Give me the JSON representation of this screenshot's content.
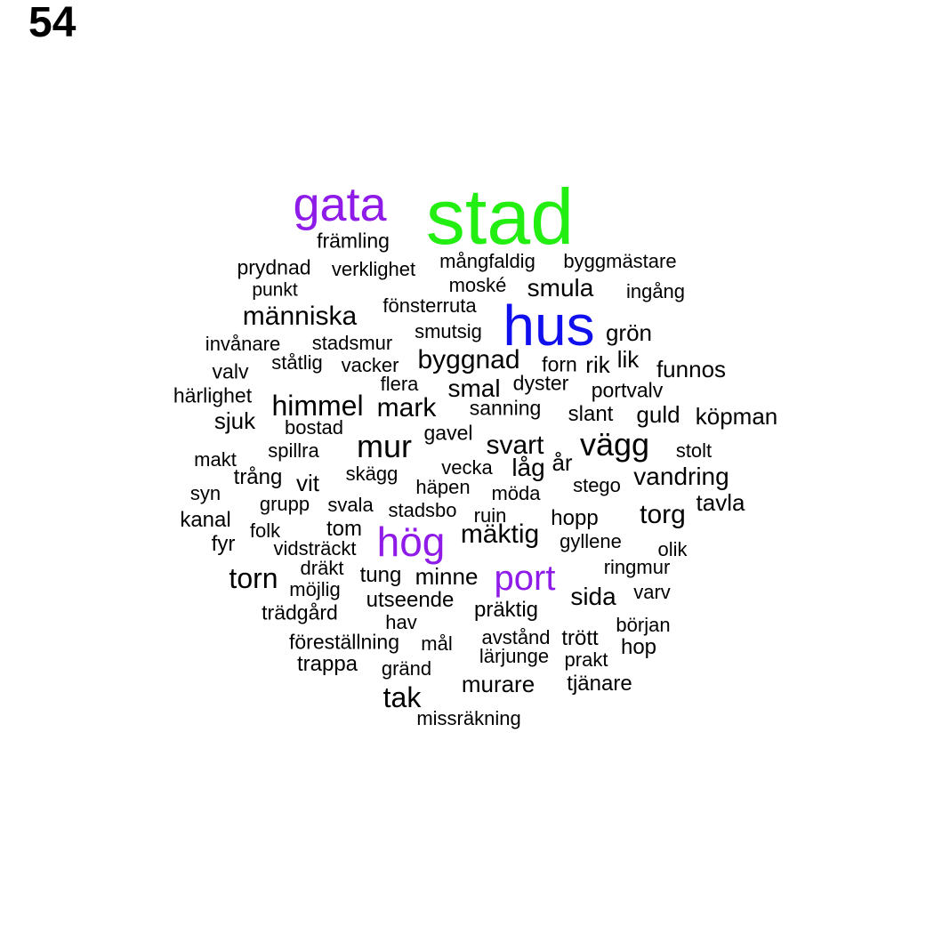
{
  "label": "54",
  "colors": {
    "default": "#000000",
    "green": "#22ee11",
    "purple": "#8e1be8",
    "blue": "#1010ee"
  },
  "words": [
    {
      "text": "stad",
      "color": "green"
    },
    {
      "text": "gata",
      "color": "purple"
    },
    {
      "text": "hus",
      "color": "blue"
    },
    {
      "text": "hög",
      "color": "purple"
    },
    {
      "text": "port",
      "color": "purple"
    },
    {
      "text": "främling"
    },
    {
      "text": "prydnad"
    },
    {
      "text": "verklighet"
    },
    {
      "text": "mångfaldig"
    },
    {
      "text": "byggmästare"
    },
    {
      "text": "punkt"
    },
    {
      "text": "moské"
    },
    {
      "text": "smula"
    },
    {
      "text": "ingång"
    },
    {
      "text": "människa"
    },
    {
      "text": "fönsterruta"
    },
    {
      "text": "invånare"
    },
    {
      "text": "stadsmur"
    },
    {
      "text": "smutsig"
    },
    {
      "text": "grön"
    },
    {
      "text": "valv"
    },
    {
      "text": "ståtlig"
    },
    {
      "text": "vacker"
    },
    {
      "text": "byggnad"
    },
    {
      "text": "forn"
    },
    {
      "text": "rik"
    },
    {
      "text": "lik"
    },
    {
      "text": "funnos"
    },
    {
      "text": "härlighet"
    },
    {
      "text": "flera"
    },
    {
      "text": "smal"
    },
    {
      "text": "dyster"
    },
    {
      "text": "portvalv"
    },
    {
      "text": "himmel"
    },
    {
      "text": "mark"
    },
    {
      "text": "sanning"
    },
    {
      "text": "slant"
    },
    {
      "text": "guld"
    },
    {
      "text": "köpman"
    },
    {
      "text": "sjuk"
    },
    {
      "text": "bostad"
    },
    {
      "text": "gavel"
    },
    {
      "text": "mur"
    },
    {
      "text": "svart"
    },
    {
      "text": "vägg"
    },
    {
      "text": "spillra"
    },
    {
      "text": "stolt"
    },
    {
      "text": "makt"
    },
    {
      "text": "år"
    },
    {
      "text": "låg"
    },
    {
      "text": "vecka"
    },
    {
      "text": "trång"
    },
    {
      "text": "skägg"
    },
    {
      "text": "vit"
    },
    {
      "text": "vandring"
    },
    {
      "text": "häpen"
    },
    {
      "text": "stego"
    },
    {
      "text": "syn"
    },
    {
      "text": "möda"
    },
    {
      "text": "grupp"
    },
    {
      "text": "svala"
    },
    {
      "text": "tavla"
    },
    {
      "text": "stadsbo"
    },
    {
      "text": "torg"
    },
    {
      "text": "kanal"
    },
    {
      "text": "ruin"
    },
    {
      "text": "hopp"
    },
    {
      "text": "tom"
    },
    {
      "text": "folk"
    },
    {
      "text": "mäktig"
    },
    {
      "text": "fyr"
    },
    {
      "text": "gyllene"
    },
    {
      "text": "vidsträckt"
    },
    {
      "text": "olik"
    },
    {
      "text": "dräkt"
    },
    {
      "text": "ringmur"
    },
    {
      "text": "torn"
    },
    {
      "text": "tung"
    },
    {
      "text": "minne"
    },
    {
      "text": "möjlig"
    },
    {
      "text": "sida"
    },
    {
      "text": "varv"
    },
    {
      "text": "utseende"
    },
    {
      "text": "trädgård"
    },
    {
      "text": "präktig"
    },
    {
      "text": "hav"
    },
    {
      "text": "början"
    },
    {
      "text": "föreställning"
    },
    {
      "text": "avstånd"
    },
    {
      "text": "trött"
    },
    {
      "text": "mål"
    },
    {
      "text": "hop"
    },
    {
      "text": "lärjunge"
    },
    {
      "text": "trappa"
    },
    {
      "text": "prakt"
    },
    {
      "text": "gränd"
    },
    {
      "text": "murare"
    },
    {
      "text": "tjänare"
    },
    {
      "text": "tak"
    },
    {
      "text": "missräkning"
    }
  ]
}
